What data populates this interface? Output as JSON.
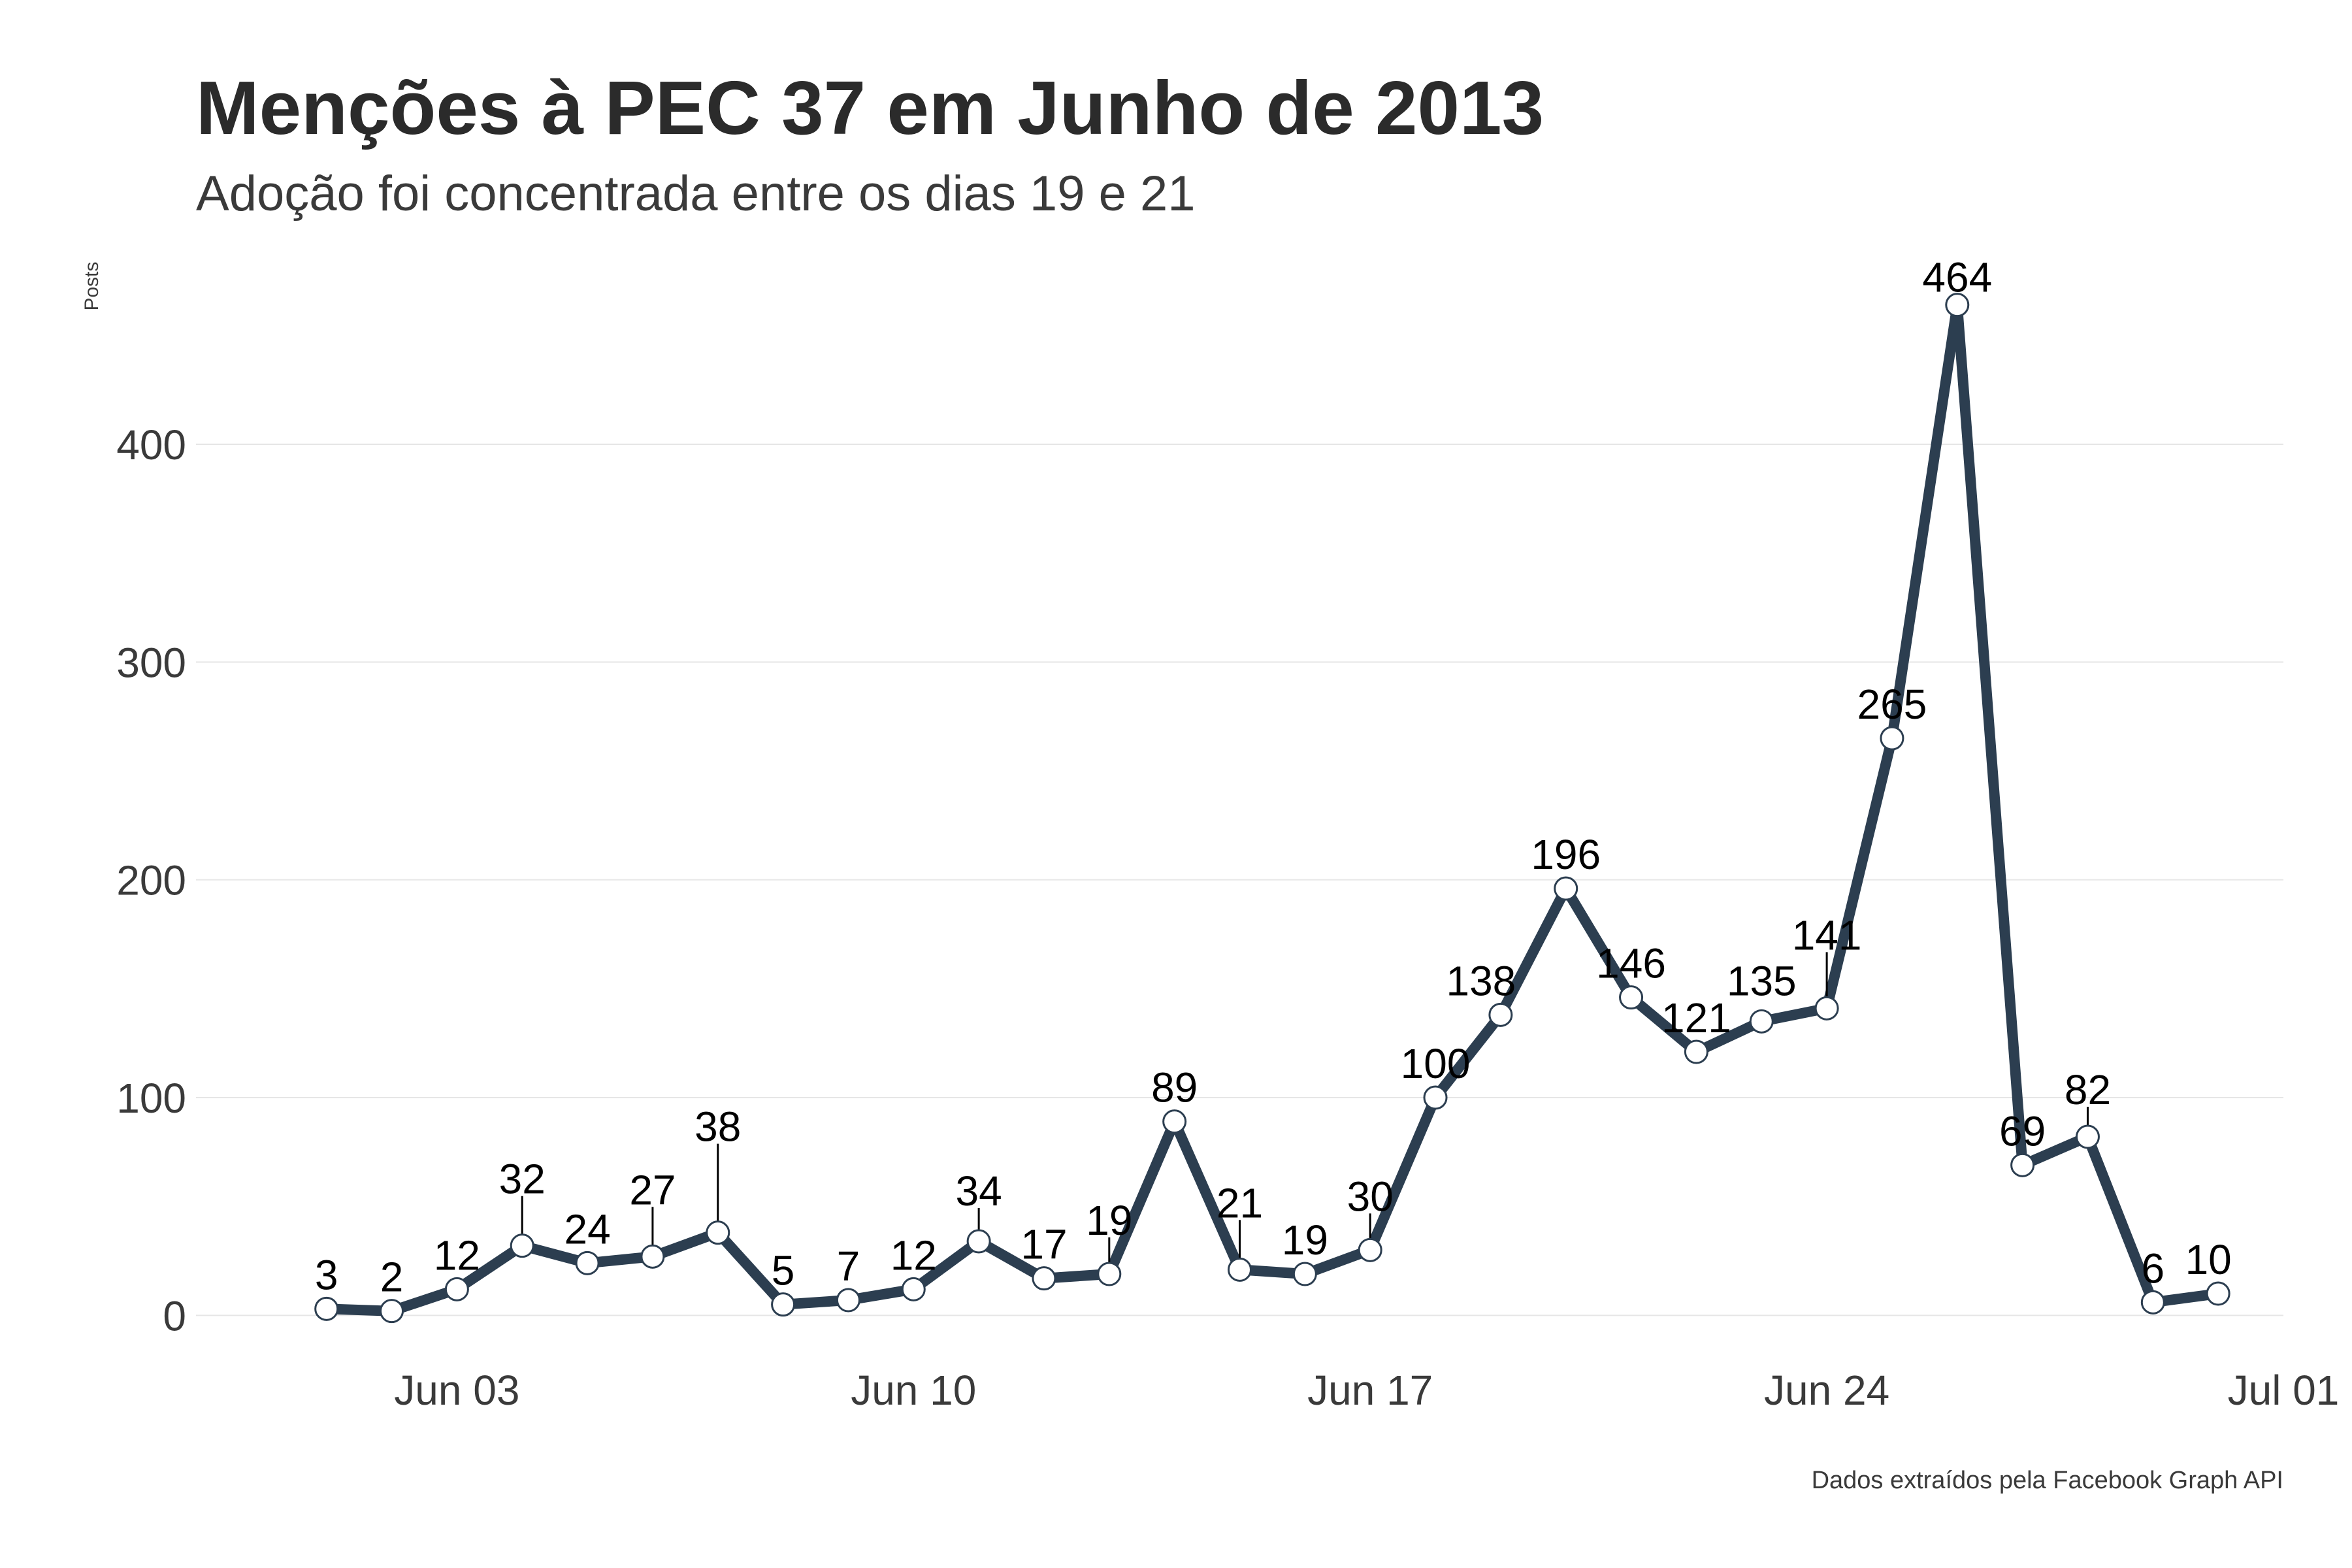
{
  "chart_data": {
    "type": "line",
    "title": "Menções à PEC 37 em Junho de 2013",
    "subtitle": "Adoção foi concentrada entre os dias 19 e 21",
    "ylabel": "Posts",
    "xlabel": "",
    "caption": "Dados extraídos pela Facebook Graph API",
    "x": [
      "2013-06-01",
      "2013-06-02",
      "2013-06-03",
      "2013-06-04",
      "2013-06-05",
      "2013-06-06",
      "2013-06-07",
      "2013-06-08",
      "2013-06-09",
      "2013-06-10",
      "2013-06-11",
      "2013-06-12",
      "2013-06-13",
      "2013-06-14",
      "2013-06-15",
      "2013-06-16",
      "2013-06-17",
      "2013-06-18",
      "2013-06-19",
      "2013-06-20",
      "2013-06-21",
      "2013-06-22",
      "2013-06-23",
      "2013-06-24",
      "2013-06-25",
      "2013-06-26",
      "2013-06-27",
      "2013-06-28",
      "2013-06-29",
      "2013-06-30"
    ],
    "values": [
      3,
      2,
      12,
      32,
      24,
      27,
      38,
      5,
      7,
      12,
      34,
      17,
      19,
      89,
      21,
      19,
      30,
      100,
      138,
      196,
      146,
      121,
      135,
      141,
      265,
      464,
      69,
      82,
      6,
      10
    ],
    "labels": [
      "3",
      "2",
      "12",
      "32",
      "24",
      "27",
      "38",
      "5",
      "7",
      "12",
      "34",
      "17",
      "19",
      "89",
      "21",
      "19",
      "30",
      "100",
      "138",
      "196",
      "146",
      "121",
      "135",
      "141",
      "265",
      "464",
      "69",
      "82",
      "6",
      "10"
    ],
    "xlim": [
      "2013-05-30",
      "2013-07-01"
    ],
    "ylim": [
      -20,
      490
    ],
    "y_ticks": [
      0,
      100,
      200,
      300,
      400
    ],
    "y_tick_labels": [
      "0",
      "100",
      "200",
      "300",
      "400"
    ],
    "x_ticks": [
      "2013-06-03",
      "2013-06-10",
      "2013-06-17",
      "2013-06-24",
      "2013-07-01"
    ],
    "x_tick_labels": [
      "Jun 03",
      "Jun 10",
      "Jun 17",
      "Jun 24",
      "Jul 01"
    ],
    "grid": true,
    "colors": {
      "line": "#2c3e50",
      "marker_fill": "#ffffff",
      "marker_stroke": "#2c3e50"
    }
  }
}
